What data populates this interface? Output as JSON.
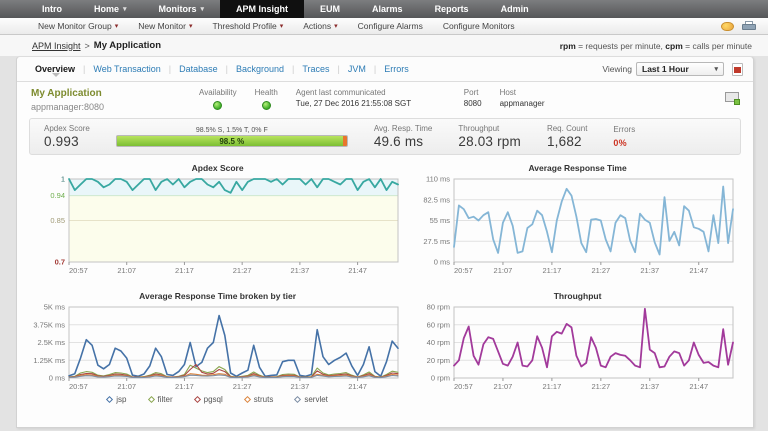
{
  "nav": {
    "items": [
      {
        "label": "Intro",
        "caret": false,
        "active": false
      },
      {
        "label": "Home",
        "caret": true,
        "active": false
      },
      {
        "label": "Monitors",
        "caret": true,
        "active": false
      },
      {
        "label": "APM Insight",
        "caret": false,
        "active": true
      },
      {
        "label": "EUM",
        "caret": false,
        "active": false
      },
      {
        "label": "Alarms",
        "caret": false,
        "active": false
      },
      {
        "label": "Reports",
        "caret": false,
        "active": false
      },
      {
        "label": "Admin",
        "caret": false,
        "active": false
      }
    ]
  },
  "toolbar": {
    "items": [
      {
        "label": "New Monitor Group",
        "caret": true
      },
      {
        "label": "New Monitor",
        "caret": true
      },
      {
        "label": "Threshold Profile",
        "caret": true
      },
      {
        "label": "Actions",
        "caret": true
      },
      {
        "label": "Configure Alarms",
        "caret": false
      },
      {
        "label": "Configure Monitors",
        "caret": false
      }
    ],
    "icons": [
      "feedback-icon",
      "print-icon"
    ]
  },
  "breadcrumb": {
    "link": "APM Insight",
    "separator": ">",
    "current": "My Application",
    "hint_rpm": "rpm",
    "hint_rpm_text": " = requests per minute, ",
    "hint_cpm": "cpm",
    "hint_cpm_text": " = calls per minute"
  },
  "tabs": {
    "items": [
      "Overview",
      "Web Transaction",
      "Database",
      "Background",
      "Traces",
      "JVM",
      "Errors"
    ],
    "active": "Overview",
    "viewing_label": "Viewing",
    "viewing_value": "Last 1 Hour",
    "export_icon": "pdf-export-icon"
  },
  "app_header": {
    "name": "My Application",
    "instance": "appmanager:8080",
    "availability_label": "Availability",
    "availability_status": "up",
    "health_label": "Health",
    "health_status": "up",
    "agent_label": "Agent last communicated",
    "agent_value": "Tue, 27 Dec 2016 21:55:08 SGT",
    "port_label": "Port",
    "port_value": "8080",
    "host_label": "Host",
    "host_value": "appmanager"
  },
  "stats": {
    "apdex_label": "Apdex Score",
    "apdex_value": "0.993",
    "bar_caption": "98.5% S, 1.5% T, 0% F",
    "bar_text": "98.5 %",
    "bar_green_pct": 98.5,
    "bar_green_color": "#7cbf33",
    "bar_rest_color": "#e9762c",
    "resp_label": "Avg. Resp. Time",
    "resp_value": "49.6 ms",
    "throughput_label": "Throughput",
    "throughput_value": "28.03 rpm",
    "req_label": "Req. Count",
    "req_value": "1,682",
    "errors_label": "Errors",
    "errors_value": "0%"
  },
  "chart_data": [
    {
      "type": "line",
      "title": "Apdex Score",
      "x": [
        "20:57",
        "21:07",
        "21:17",
        "21:27",
        "21:37",
        "21:47"
      ],
      "x_tick_positions": [
        0,
        10,
        20,
        30,
        40,
        50
      ],
      "ylim": [
        0.7,
        1.0
      ],
      "grid": true,
      "legend_position": "none",
      "yticks": [
        {
          "value": 1,
          "label": "1",
          "color": "#2e6e6a"
        },
        {
          "value": 0.94,
          "label": "0.94",
          "color": "#6fae4e",
          "line": "#cfe8cf"
        },
        {
          "value": 0.85,
          "label": "0.85",
          "color": "#a09a77",
          "line": "#e6e2c8"
        },
        {
          "value": 0.7,
          "label": "0.7",
          "color": "#a23a35",
          "bold": true
        }
      ],
      "bands": [
        {
          "from": 0.94,
          "to": 1.0,
          "color": "#e9f6f9"
        },
        {
          "from": 0.7,
          "to": 0.94,
          "color": "#fcfdec"
        }
      ],
      "series": [
        {
          "name": "Apdex Score",
          "color": "#38a8a1",
          "width": 1.8,
          "values": [
            1,
            0.96,
            0.98,
            1,
            1,
            0.99,
            0.97,
            0.98,
            1,
            1,
            0.99,
            0.96,
            0.98,
            1,
            1,
            0.96,
            0.99,
            1,
            0.98,
            1,
            0.97,
            0.99,
            1,
            1,
            0.98,
            0.97,
            0.99,
            0.96,
            0.95,
            0.99,
            0.96,
            0.99,
            1,
            1,
            1,
            0.99,
            1,
            0.98,
            1,
            1,
            1,
            0.98,
            1,
            0.97,
            1,
            1,
            0.99,
            0.98,
            1,
            1,
            0.96,
            0.99,
            1,
            0.97,
            1,
            0.96,
            0.99,
            0.98
          ]
        }
      ]
    },
    {
      "type": "line",
      "title": "Average Response Time",
      "x": [
        "20:57",
        "21:07",
        "21:17",
        "21:27",
        "21:37",
        "21:47"
      ],
      "x_tick_positions": [
        0,
        10,
        20,
        30,
        40,
        50
      ],
      "ylim": [
        0,
        110
      ],
      "grid": true,
      "legend_position": "none",
      "yticks": [
        {
          "value": 110,
          "label": "110 ms",
          "color": "#777"
        },
        {
          "value": 82.5,
          "label": "82.5 ms",
          "color": "#777",
          "line": "#e2e2e2"
        },
        {
          "value": 55,
          "label": "55 ms",
          "color": "#777",
          "line": "#e2e2e2"
        },
        {
          "value": 27.5,
          "label": "27.5 ms",
          "color": "#777",
          "line": "#e2e2e2"
        },
        {
          "value": 0,
          "label": "0 ms",
          "color": "#777"
        }
      ],
      "bands": [],
      "series": [
        {
          "name": "Average Response Time",
          "color": "#85b6d6",
          "width": 1.8,
          "values": [
            20,
            75,
            70,
            58,
            60,
            55,
            62,
            66,
            30,
            12,
            52,
            66,
            48,
            12,
            14,
            45,
            50,
            68,
            62,
            40,
            13,
            55,
            80,
            97,
            88,
            60,
            25,
            13,
            56,
            57,
            55,
            30,
            14,
            52,
            62,
            58,
            28,
            13,
            64,
            56,
            52,
            26,
            10,
            86,
            28,
            40,
            22,
            74,
            68,
            46,
            44,
            40,
            14,
            62,
            25,
            100,
            25,
            70
          ]
        }
      ]
    },
    {
      "type": "line",
      "title": "Average Response Time broken by tier",
      "x": [
        "20:57",
        "21:07",
        "21:17",
        "21:27",
        "21:37",
        "21:47"
      ],
      "x_tick_positions": [
        0,
        10,
        20,
        30,
        40,
        50
      ],
      "ylim": [
        0,
        5000
      ],
      "grid": true,
      "legend_position": "bottom",
      "yticks": [
        {
          "value": 5000,
          "label": "5K ms",
          "color": "#777"
        },
        {
          "value": 3750,
          "label": "3.75K ms",
          "color": "#777",
          "line": "#e2e2e2"
        },
        {
          "value": 2500,
          "label": "2.5K ms",
          "color": "#777",
          "line": "#e2e2e2"
        },
        {
          "value": 1250,
          "label": "1.25K ms",
          "color": "#777",
          "line": "#e2e2e2"
        },
        {
          "value": 0,
          "label": "0 ms",
          "color": "#777"
        }
      ],
      "bands": [],
      "series": [
        {
          "name": "jsp",
          "color": "#4572a7",
          "width": 1.6,
          "values": [
            150,
            300,
            1400,
            2700,
            2300,
            900,
            650,
            950,
            2100,
            1900,
            1400,
            200,
            120,
            280,
            850,
            2100,
            1500,
            250,
            180,
            450,
            950,
            2500,
            800,
            1100,
            2100,
            2500,
            4400,
            3000,
            350,
            120,
            350,
            550,
            2300,
            750,
            120,
            180,
            220,
            1150,
            1250,
            1250,
            180,
            120,
            250,
            3400,
            1500,
            950,
            1250,
            1450,
            1750,
            850,
            180,
            950,
            2200,
            450,
            120,
            1150,
            2600,
            2100
          ]
        },
        {
          "name": "filter",
          "color": "#89a54e",
          "width": 1.1,
          "values": [
            80,
            120,
            350,
            450,
            400,
            200,
            150,
            250,
            380,
            350,
            280,
            80,
            60,
            100,
            200,
            380,
            300,
            90,
            70,
            120,
            250,
            900,
            700,
            500,
            380,
            450,
            800,
            600,
            120,
            60,
            120,
            180,
            420,
            200,
            60,
            80,
            90,
            250,
            280,
            260,
            70,
            60,
            90,
            700,
            350,
            220,
            280,
            320,
            380,
            200,
            70,
            220,
            420,
            120,
            60,
            250,
            480,
            400
          ]
        },
        {
          "name": "pgsql",
          "color": "#aa4643",
          "width": 1.1,
          "values": [
            60,
            90,
            250,
            320,
            300,
            150,
            110,
            180,
            280,
            260,
            200,
            60,
            50,
            80,
            150,
            280,
            220,
            70,
            60,
            90,
            180,
            600,
            950,
            400,
            280,
            330,
            600,
            450,
            90,
            50,
            90,
            130,
            310,
            150,
            50,
            60,
            70,
            180,
            200,
            190,
            55,
            50,
            70,
            500,
            260,
            160,
            200,
            240,
            280,
            150,
            55,
            160,
            310,
            90,
            50,
            180,
            350,
            300
          ]
        },
        {
          "name": "struts",
          "color": "#db843d",
          "width": 1.1,
          "values": [
            50,
            70,
            180,
            230,
            210,
            110,
            80,
            130,
            200,
            190,
            150,
            50,
            40,
            60,
            110,
            200,
            160,
            55,
            45,
            70,
            130,
            300,
            260,
            200,
            190,
            230,
            300,
            260,
            65,
            40,
            65,
            95,
            220,
            110,
            40,
            45,
            55,
            130,
            150,
            140,
            42,
            40,
            55,
            260,
            190,
            120,
            150,
            170,
            200,
            110,
            42,
            120,
            220,
            65,
            40,
            130,
            250,
            210
          ]
        },
        {
          "name": "servlet",
          "color": "#7b8ca3",
          "width": 1.1,
          "values": [
            40,
            55,
            120,
            160,
            150,
            80,
            60,
            95,
            140,
            135,
            110,
            40,
            30,
            45,
            80,
            140,
            115,
            42,
            35,
            55,
            95,
            200,
            180,
            140,
            135,
            160,
            210,
            180,
            48,
            30,
            48,
            70,
            155,
            80,
            30,
            35,
            42,
            95,
            105,
            100,
            32,
            30,
            42,
            180,
            135,
            85,
            105,
            120,
            140,
            80,
            32,
            85,
            155,
            48,
            30,
            95,
            175,
            150
          ]
        }
      ]
    },
    {
      "type": "line",
      "title": "Throughput",
      "x": [
        "20:57",
        "21:07",
        "21:17",
        "21:27",
        "21:37",
        "21:47"
      ],
      "x_tick_positions": [
        0,
        10,
        20,
        30,
        40,
        50
      ],
      "ylim": [
        0,
        80
      ],
      "grid": true,
      "legend_position": "none",
      "yticks": [
        {
          "value": 80,
          "label": "80 rpm",
          "color": "#777"
        },
        {
          "value": 60,
          "label": "60 rpm",
          "color": "#777",
          "line": "#e2e2e2"
        },
        {
          "value": 40,
          "label": "40 rpm",
          "color": "#777",
          "line": "#e2e2e2"
        },
        {
          "value": 20,
          "label": "20 rpm",
          "color": "#777",
          "line": "#e2e2e2"
        },
        {
          "value": 0,
          "label": "0 rpm",
          "color": "#777"
        }
      ],
      "bands": [],
      "series": [
        {
          "name": "Throughput",
          "color": "#a23a9b",
          "width": 1.8,
          "values": [
            14,
            20,
            45,
            58,
            25,
            15,
            38,
            46,
            44,
            30,
            16,
            14,
            24,
            40,
            14,
            13,
            20,
            47,
            34,
            12,
            47,
            52,
            50,
            61,
            57,
            25,
            13,
            17,
            46,
            34,
            14,
            12,
            24,
            28,
            26,
            25,
            20,
            14,
            12,
            78,
            32,
            28,
            12,
            13,
            24,
            30,
            28,
            14,
            20,
            40,
            26,
            17,
            18,
            14,
            12,
            55,
            15,
            40
          ]
        }
      ]
    }
  ]
}
